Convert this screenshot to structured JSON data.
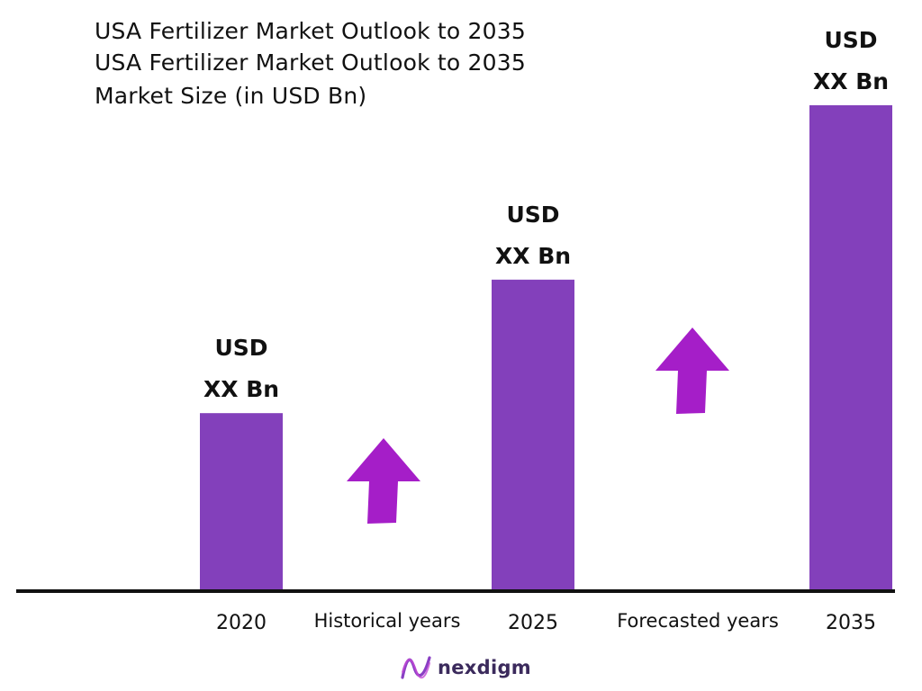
{
  "header": {
    "title_1": "USA Fertilizer Market Outlook to 2035",
    "title_2": "USA Fertilizer Market Outlook to 2035",
    "subtitle": "Market Size (in USD Bn)"
  },
  "chart_data": {
    "type": "bar",
    "categories": [
      "2020",
      "2025",
      "2035"
    ],
    "values": [
      1,
      1.75,
      2.73
    ],
    "value_label_line1": [
      "USD",
      "USD",
      "USD"
    ],
    "value_label_line2": [
      "XX Bn",
      "XX Bn",
      "XX Bn"
    ],
    "ylim": [
      0,
      2.75
    ],
    "grid": false,
    "legend": "none",
    "annotations": [
      {
        "text": "Historical years",
        "between": [
          "2020",
          "2025"
        ],
        "icon": "up-arrow-icon"
      },
      {
        "text": "Forecasted years",
        "between": [
          "2025",
          "2035"
        ],
        "icon": "up-arrow-icon"
      }
    ],
    "colors": {
      "bar": "#8340bb",
      "arrow": "#a51ec8",
      "axis": "#111111"
    }
  },
  "brand": {
    "name": "nexdigm",
    "icon": "nexdigm-logo-icon"
  }
}
